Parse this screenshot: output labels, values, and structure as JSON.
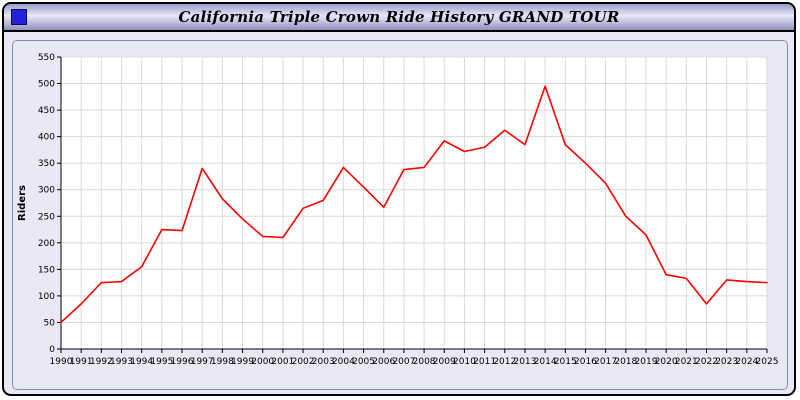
{
  "window": {
    "title": "California Triple Crown Ride History GRAND TOUR",
    "icon_color": "#2222dd"
  },
  "chart_data": {
    "type": "line",
    "title": "California Triple Crown Ride History GRAND TOUR",
    "ylabel": "Riders",
    "xlabel": "",
    "ylim": [
      0,
      550
    ],
    "ytick_step": 50,
    "grid": true,
    "legend": "none",
    "line_color": "#ff0000",
    "categories": [
      "1990",
      "1991",
      "1992",
      "1993",
      "1994",
      "1995",
      "1996",
      "1997",
      "1998",
      "1999",
      "2000",
      "2001",
      "2002",
      "2003",
      "2004",
      "2005",
      "2006",
      "2007",
      "2008",
      "2009",
      "2010",
      "2011",
      "2012",
      "2013",
      "2014",
      "2015",
      "2016",
      "2017",
      "2018",
      "2019",
      "2020",
      "2021",
      "2022",
      "2023",
      "2024",
      "2025"
    ],
    "series": [
      {
        "name": "Riders",
        "values": [
          50,
          85,
          125,
          127,
          155,
          225,
          223,
          340,
          283,
          245,
          212,
          210,
          265,
          280,
          342,
          305,
          267,
          338,
          342,
          392,
          372,
          380,
          412,
          385,
          495,
          385,
          350,
          312,
          250,
          215,
          140,
          133,
          85,
          130,
          127,
          125
        ]
      }
    ]
  }
}
